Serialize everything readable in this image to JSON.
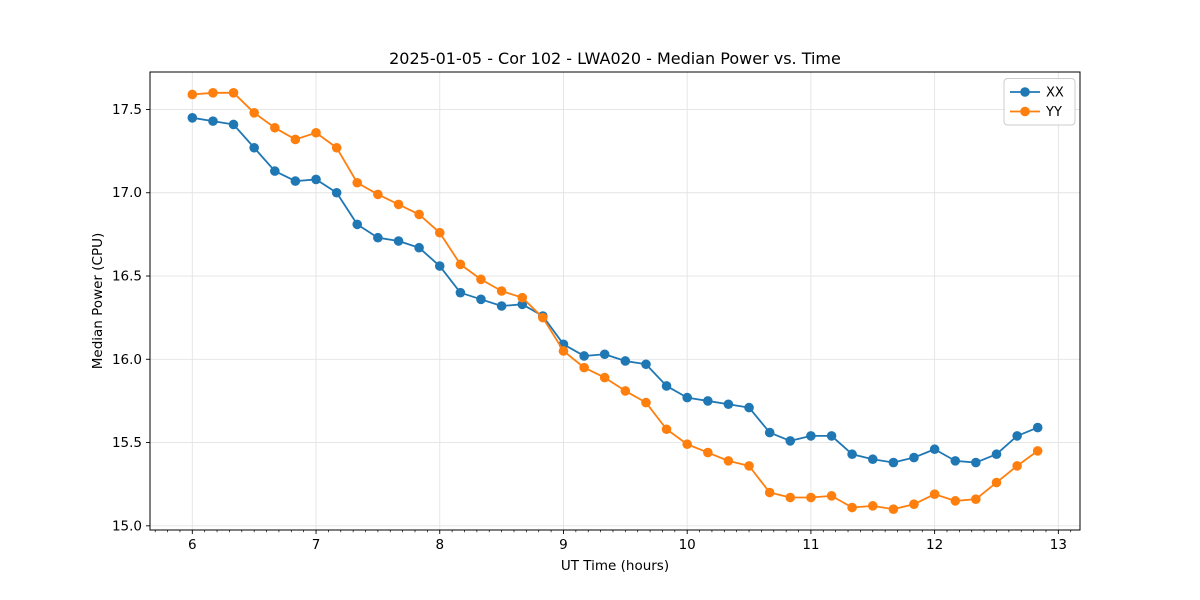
{
  "chart_data": {
    "type": "line",
    "title": "2025-01-05 - Cor 102 - LWA020 - Median Power vs. Time",
    "xlabel": "UT Time (hours)",
    "ylabel": "Median Power (CPU)",
    "xlim": [
      5.658,
      13.175
    ],
    "ylim": [
      14.975,
      17.725
    ],
    "xticks": [
      6,
      7,
      8,
      9,
      10,
      11,
      12,
      13
    ],
    "yticks": [
      15.0,
      15.5,
      16.0,
      16.5,
      17.0,
      17.5
    ],
    "minor_xtick_step": 0.1,
    "grid": true,
    "grid_color": "#e3e3e3",
    "legend_position": "upper right",
    "x": [
      6.0,
      6.167,
      6.333,
      6.5,
      6.667,
      6.833,
      7.0,
      7.167,
      7.333,
      7.5,
      7.667,
      7.833,
      8.0,
      8.167,
      8.333,
      8.5,
      8.667,
      8.833,
      9.0,
      9.167,
      9.333,
      9.5,
      9.667,
      9.833,
      10.0,
      10.167,
      10.333,
      10.5,
      10.667,
      10.833,
      11.0,
      11.167,
      11.333,
      11.5,
      11.667,
      11.833,
      12.0,
      12.167,
      12.333,
      12.5,
      12.667,
      12.833
    ],
    "series": [
      {
        "name": "XX",
        "color": "#1f77b4",
        "values": [
          17.45,
          17.43,
          17.41,
          17.27,
          17.13,
          17.07,
          17.08,
          17.0,
          16.81,
          16.73,
          16.71,
          16.67,
          16.56,
          16.4,
          16.36,
          16.32,
          16.33,
          16.26,
          16.09,
          16.02,
          16.03,
          15.99,
          15.97,
          15.84,
          15.77,
          15.75,
          15.73,
          15.71,
          15.56,
          15.51,
          15.54,
          15.54,
          15.43,
          15.4,
          15.38,
          15.41,
          15.46,
          15.39,
          15.38,
          15.43,
          15.54,
          15.59
        ]
      },
      {
        "name": "YY",
        "color": "#ff7f0e",
        "values": [
          17.59,
          17.6,
          17.6,
          17.48,
          17.39,
          17.32,
          17.36,
          17.27,
          17.06,
          16.99,
          16.93,
          16.87,
          16.76,
          16.57,
          16.48,
          16.41,
          16.37,
          16.25,
          16.05,
          15.95,
          15.89,
          15.81,
          15.74,
          15.58,
          15.49,
          15.44,
          15.39,
          15.36,
          15.2,
          15.17,
          15.17,
          15.18,
          15.11,
          15.12,
          15.1,
          15.13,
          15.19,
          15.15,
          15.16,
          15.26,
          15.36,
          15.45
        ]
      }
    ]
  }
}
